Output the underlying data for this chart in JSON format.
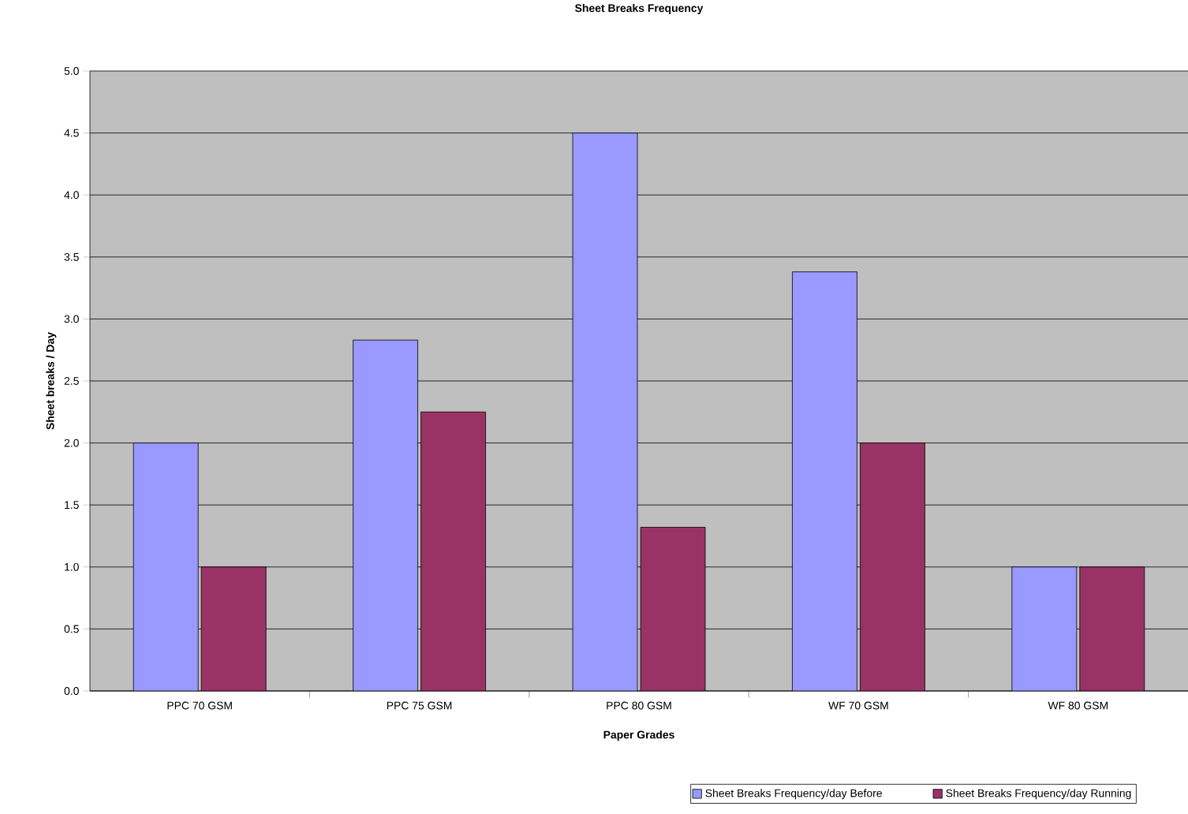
{
  "chart_data": {
    "type": "bar",
    "title": "Sheet Breaks Frequency",
    "xlabel": "Paper Grades",
    "ylabel": "Sheet breaks / Day",
    "categories": [
      "PPC 70 GSM",
      "PPC 75 GSM",
      "PPC 80 GSM",
      "WF 70 GSM",
      "WF 80 GSM"
    ],
    "series": [
      {
        "name": "Sheet Breaks Frequency/day Before",
        "color": "#9999ff",
        "values": [
          2.0,
          2.83,
          4.5,
          3.38,
          1.0
        ]
      },
      {
        "name": "Sheet Breaks Frequency/day Running",
        "color": "#993366",
        "values": [
          1.0,
          2.25,
          1.32,
          2.0,
          1.0
        ]
      }
    ],
    "ylim": [
      0,
      5
    ],
    "yticks": [
      {
        "value": 0,
        "label": "0.0"
      },
      {
        "value": 0.5,
        "label": "0.5"
      },
      {
        "value": 1,
        "label": "1.0"
      },
      {
        "value": 1.5,
        "label": "1.5"
      },
      {
        "value": 2,
        "label": "2.0"
      },
      {
        "value": 2.5,
        "label": "2.5"
      },
      {
        "value": 3,
        "label": "3.0"
      },
      {
        "value": 3.5,
        "label": "3.5"
      },
      {
        "value": 4,
        "label": "4.0"
      },
      {
        "value": 4.5,
        "label": "4.5"
      },
      {
        "value": 5,
        "label": "5.0"
      }
    ],
    "grid": "y",
    "legend": "bottom"
  }
}
